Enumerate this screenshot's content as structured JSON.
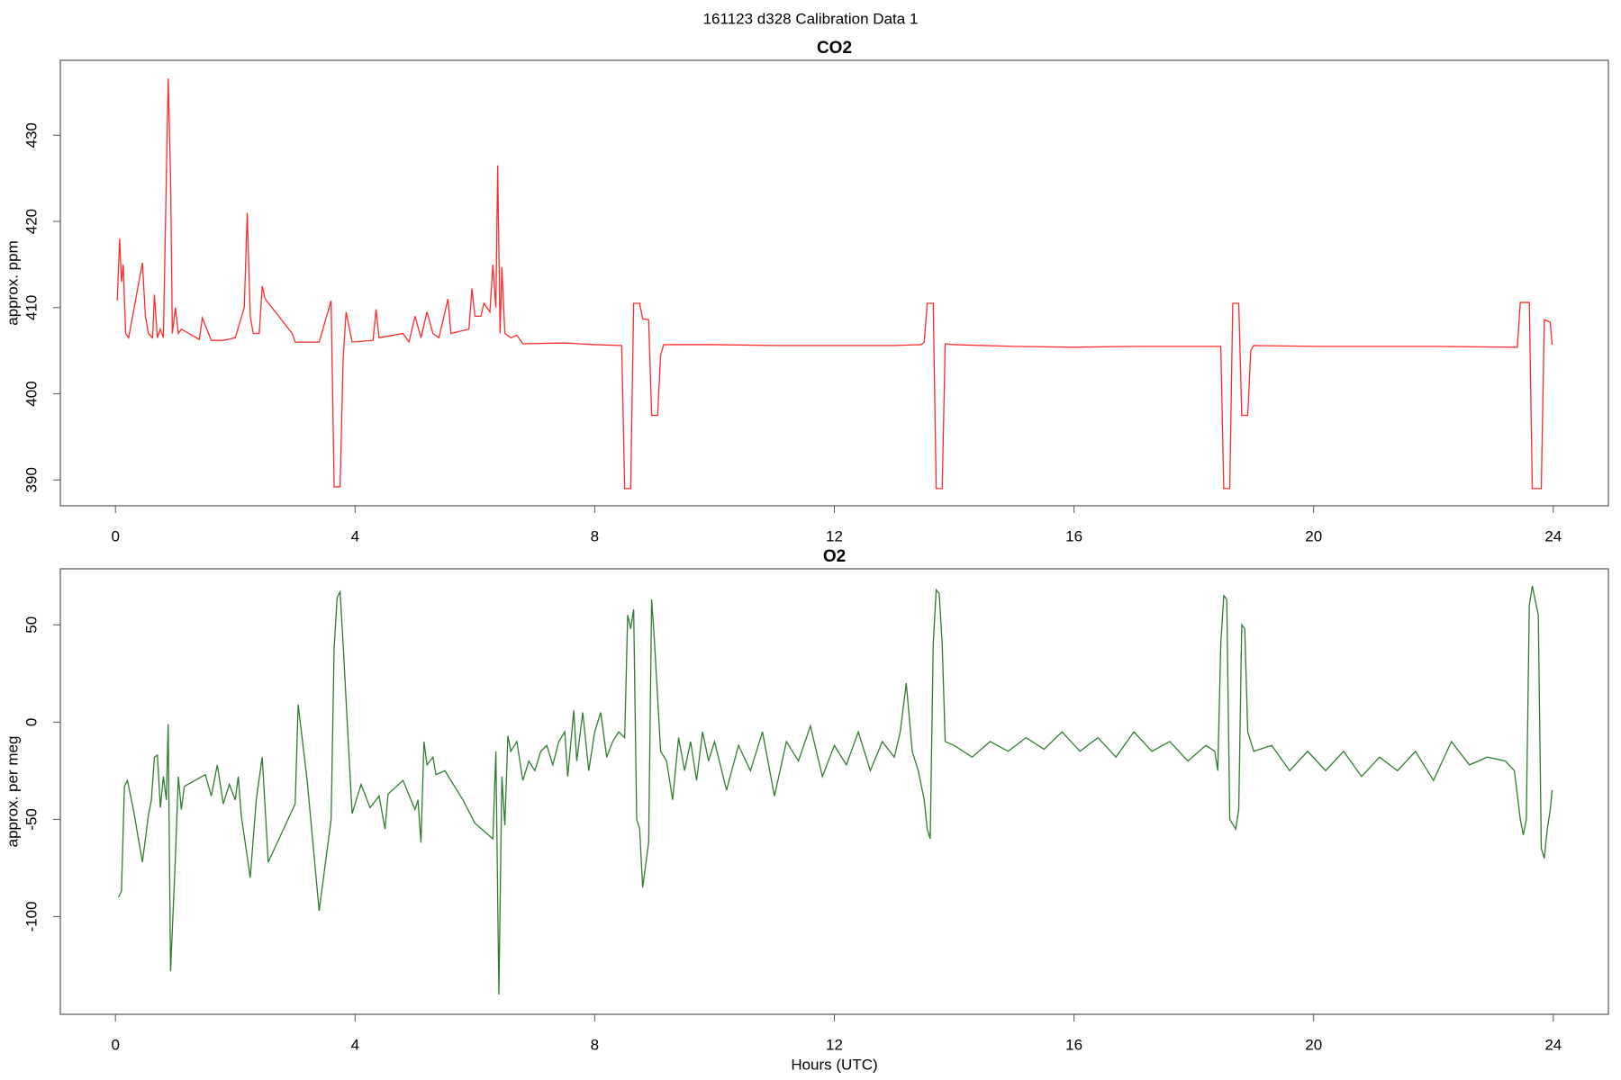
{
  "title": "161123   d328   Calibration Data 1",
  "chart_data": [
    {
      "type": "line",
      "title": "CO2",
      "ylabel": "approx. ppm",
      "xlim": [
        -0.92,
        24.92
      ],
      "xticks": [
        0,
        4,
        8,
        12,
        16,
        20,
        24
      ],
      "ylim": [
        387,
        438.7
      ],
      "yticks": [
        390,
        400,
        410,
        420,
        430
      ],
      "series": [
        {
          "name": "CO2",
          "color": "#ff2a2a",
          "x": [
            0.03,
            0.07,
            0.1,
            0.13,
            0.17,
            0.22,
            0.45,
            0.5,
            0.55,
            0.62,
            0.65,
            0.7,
            0.75,
            0.8,
            0.88,
            0.92,
            0.95,
            1.0,
            1.05,
            1.1,
            1.4,
            1.45,
            1.6,
            1.8,
            2.0,
            2.15,
            2.2,
            2.25,
            2.3,
            2.4,
            2.45,
            2.5,
            2.95,
            3.0,
            3.4,
            3.6,
            3.65,
            3.75,
            3.8,
            3.85,
            3.95,
            4.3,
            4.35,
            4.4,
            4.8,
            4.9,
            5.0,
            5.1,
            5.2,
            5.3,
            5.4,
            5.55,
            5.6,
            5.9,
            5.95,
            6.0,
            6.1,
            6.15,
            6.25,
            6.3,
            6.35,
            6.38,
            6.42,
            6.45,
            6.5,
            6.6,
            6.7,
            6.8,
            7.5,
            8.0,
            8.45,
            8.5,
            8.6,
            8.65,
            8.75,
            8.8,
            8.9,
            8.95,
            9.05,
            9.1,
            9.15,
            10,
            11,
            12,
            13,
            13.45,
            13.5,
            13.55,
            13.65,
            13.7,
            13.8,
            13.85,
            14,
            15,
            16,
            17,
            18,
            18.45,
            18.5,
            18.6,
            18.65,
            18.75,
            18.8,
            18.9,
            18.95,
            19.0,
            20,
            21,
            22,
            23.4,
            23.45,
            23.6,
            23.65,
            23.8,
            23.85,
            23.95,
            23.98
          ],
          "values": [
            410.8,
            418,
            413,
            415,
            407,
            406.5,
            415.2,
            409,
            407,
            406.5,
            411.5,
            406.5,
            407.5,
            406.5,
            436.6,
            425,
            407,
            410,
            407,
            407.5,
            406.3,
            408.8,
            406.2,
            406.2,
            406.5,
            410,
            421,
            409,
            407,
            407,
            412.5,
            411,
            407,
            406,
            406,
            410.8,
            389.2,
            389.2,
            404,
            409.5,
            406,
            406.2,
            409.8,
            406.5,
            407,
            406,
            409,
            406.5,
            409.5,
            407,
            406.5,
            411,
            407,
            407.5,
            412.2,
            409,
            409,
            410.5,
            409.5,
            415,
            410,
            426.5,
            407,
            414.7,
            407,
            406.5,
            406.8,
            405.8,
            405.9,
            405.7,
            405.6,
            389,
            389,
            410.5,
            410.5,
            408.7,
            408.6,
            397.5,
            397.5,
            404.5,
            405.7,
            405.7,
            405.6,
            405.6,
            405.6,
            405.7,
            406,
            410.5,
            410.5,
            389,
            389,
            405.8,
            405.7,
            405.5,
            405.4,
            405.5,
            405.5,
            405.5,
            389,
            389,
            410.5,
            410.5,
            397.5,
            397.5,
            405,
            405.6,
            405.5,
            405.5,
            405.5,
            405.4,
            410.6,
            410.6,
            389,
            389,
            408.6,
            408.3,
            405.7
          ]
        }
      ]
    },
    {
      "type": "line",
      "title": "O2",
      "ylabel": "approx. per meg",
      "xlabel": "Hours (UTC)",
      "xlim": [
        -0.92,
        24.92
      ],
      "xticks": [
        0,
        4,
        8,
        12,
        16,
        20,
        24
      ],
      "ylim": [
        -150.2,
        78.8
      ],
      "yticks": [
        -100,
        -50,
        0,
        50
      ],
      "series": [
        {
          "name": "O2",
          "color": "#2e7d2e",
          "x": [
            0.05,
            0.1,
            0.15,
            0.2,
            0.3,
            0.45,
            0.55,
            0.6,
            0.65,
            0.7,
            0.75,
            0.8,
            0.85,
            0.88,
            0.92,
            1.0,
            1.05,
            1.1,
            1.15,
            1.5,
            1.6,
            1.7,
            1.8,
            1.9,
            2.0,
            2.05,
            2.1,
            2.25,
            2.35,
            2.45,
            2.55,
            3.0,
            3.05,
            3.2,
            3.4,
            3.6,
            3.65,
            3.7,
            3.75,
            3.8,
            3.95,
            4.1,
            4.25,
            4.4,
            4.5,
            4.55,
            4.8,
            5.0,
            5.05,
            5.1,
            5.15,
            5.2,
            5.3,
            5.35,
            5.5,
            5.8,
            6.0,
            6.3,
            6.35,
            6.4,
            6.45,
            6.5,
            6.55,
            6.6,
            6.7,
            6.8,
            6.9,
            7.0,
            7.1,
            7.2,
            7.3,
            7.4,
            7.5,
            7.55,
            7.65,
            7.7,
            7.8,
            7.9,
            8.0,
            8.1,
            8.2,
            8.3,
            8.4,
            8.5,
            8.55,
            8.6,
            8.65,
            8.7,
            8.75,
            8.8,
            8.9,
            8.95,
            9.0,
            9.1,
            9.2,
            9.3,
            9.4,
            9.5,
            9.6,
            9.7,
            9.8,
            9.9,
            10,
            10.2,
            10.4,
            10.6,
            10.8,
            11,
            11.2,
            11.4,
            11.6,
            11.8,
            12,
            12.2,
            12.4,
            12.6,
            12.8,
            13,
            13.1,
            13.2,
            13.3,
            13.4,
            13.5,
            13.55,
            13.6,
            13.65,
            13.7,
            13.75,
            13.8,
            13.85,
            14,
            14.3,
            14.6,
            14.9,
            15.2,
            15.5,
            15.8,
            16.1,
            16.4,
            16.7,
            17,
            17.3,
            17.6,
            17.9,
            18.2,
            18.35,
            18.4,
            18.45,
            18.5,
            18.55,
            18.6,
            18.7,
            18.75,
            18.8,
            18.85,
            18.9,
            19.0,
            19.3,
            19.6,
            19.9,
            20.2,
            20.5,
            20.8,
            21.1,
            21.4,
            21.7,
            22,
            22.3,
            22.6,
            22.9,
            23.2,
            23.35,
            23.45,
            23.5,
            23.55,
            23.6,
            23.65,
            23.75,
            23.8,
            23.85,
            23.9,
            23.95,
            23.98
          ],
          "values": [
            -90,
            -87,
            -33,
            -30,
            -45,
            -72,
            -48,
            -40,
            -18,
            -17,
            -44,
            -28,
            -40,
            -1,
            -128,
            -70,
            -28,
            -45,
            -33,
            -27,
            -38,
            -22,
            -42,
            -32,
            -40,
            -28,
            -48,
            -80,
            -40,
            -18,
            -72,
            -42,
            9,
            -30,
            -97,
            -50,
            38,
            64,
            67,
            40,
            -47,
            -32,
            -44,
            -38,
            -55,
            -37,
            -30,
            -45,
            -40,
            -62,
            -10,
            -22,
            -18,
            -27,
            -25,
            -40,
            -52,
            -60,
            -15,
            -140,
            -28,
            -53,
            -7,
            -15,
            -10,
            -30,
            -20,
            -25,
            -15,
            -12,
            -22,
            -10,
            -5,
            -28,
            6,
            -20,
            5,
            -25,
            -5,
            5,
            -18,
            -10,
            -5,
            -8,
            55,
            48,
            58,
            -50,
            -55,
            -85,
            -62,
            63,
            40,
            -15,
            -20,
            -40,
            -8,
            -25,
            -10,
            -30,
            -5,
            -20,
            -10,
            -35,
            -12,
            -25,
            -5,
            -38,
            -10,
            -20,
            -2,
            -28,
            -12,
            -22,
            -5,
            -25,
            -10,
            -18,
            -5,
            20,
            -15,
            -25,
            -40,
            -55,
            -60,
            40,
            68,
            66,
            40,
            -10,
            -12,
            -18,
            -10,
            -15,
            -8,
            -14,
            -5,
            -15,
            -8,
            -18,
            -5,
            -15,
            -10,
            -20,
            -12,
            -15,
            -25,
            40,
            65,
            63,
            -50,
            -55,
            -45,
            50,
            48,
            -5,
            -15,
            -12,
            -25,
            -15,
            -25,
            -15,
            -28,
            -18,
            -25,
            -15,
            -30,
            -10,
            -22,
            -18,
            -20,
            -25,
            -50,
            -58,
            -50,
            60,
            70,
            55,
            -65,
            -70,
            -55,
            -45,
            -35
          ]
        }
      ]
    }
  ]
}
